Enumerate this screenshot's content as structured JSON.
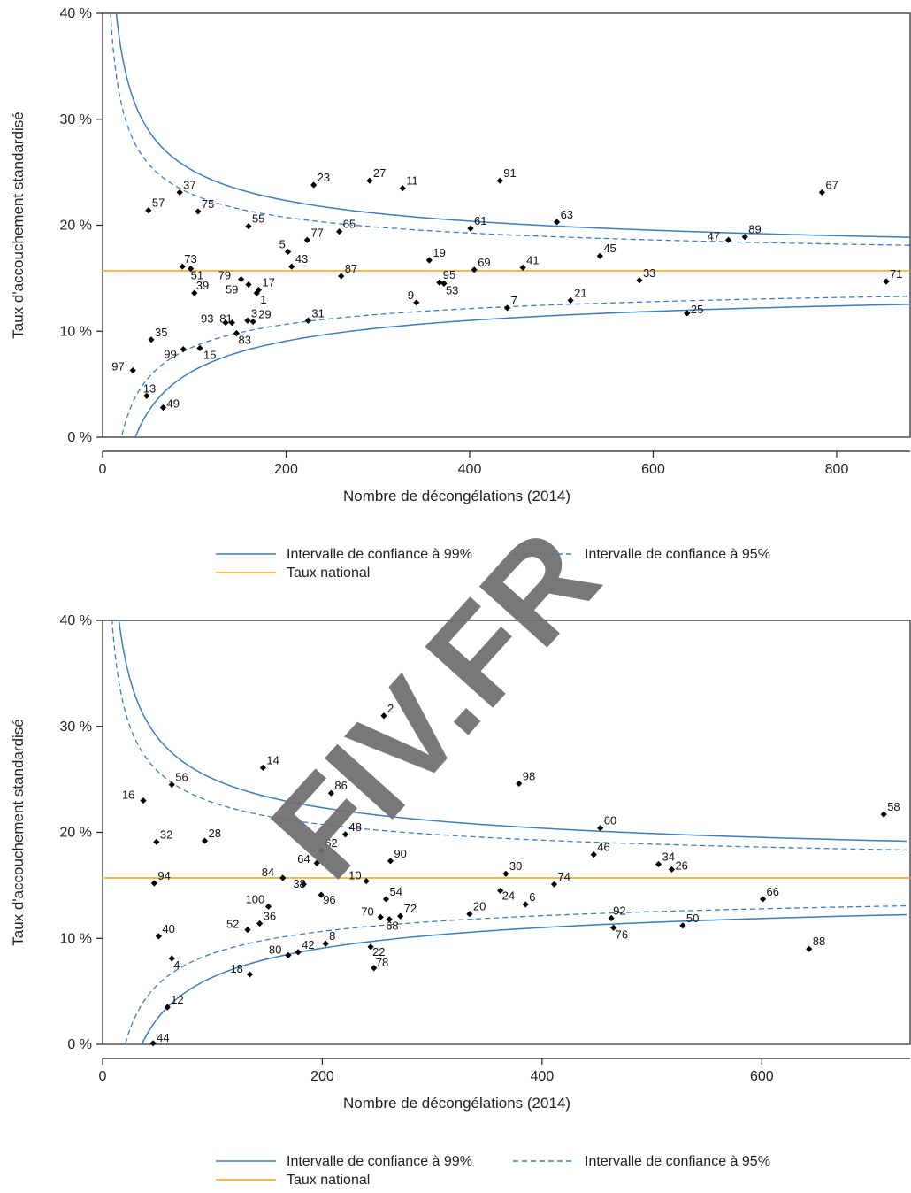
{
  "watermark": "FIV.FR",
  "colors": {
    "ci": "#3c7dc4",
    "national": "#f2b134",
    "point": "#000000",
    "axis": "#222222"
  },
  "legend": {
    "ci99": "Intervalle de confiance à 99%",
    "ci95": "Intervalle de confiance à 95%",
    "national": "Taux national"
  },
  "chart_data": [
    {
      "type": "scatter",
      "xlabel": "Nombre de décongélations (2014)",
      "ylabel": "Taux d'accouchement standardisé",
      "xlim": [
        0,
        880
      ],
      "ylim": [
        0,
        40
      ],
      "xticks": [
        0,
        200,
        400,
        600,
        800
      ],
      "yticks": [
        0,
        10,
        20,
        30,
        40
      ],
      "ytick_labels": [
        "0 %",
        "10 %",
        "20 %",
        "30 %",
        "40 %"
      ],
      "national_rate": 15.7,
      "grid": false,
      "points": [
        {
          "label": "57",
          "x": 50,
          "y": 21.4
        },
        {
          "label": "37",
          "x": 84,
          "y": 23.1
        },
        {
          "label": "75",
          "x": 104,
          "y": 21.3
        },
        {
          "label": "55",
          "x": 159,
          "y": 19.9
        },
        {
          "label": "23",
          "x": 230,
          "y": 23.8
        },
        {
          "label": "27",
          "x": 291,
          "y": 24.2
        },
        {
          "label": "11",
          "x": 327,
          "y": 23.5
        },
        {
          "label": "91",
          "x": 433,
          "y": 24.2
        },
        {
          "label": "67",
          "x": 784,
          "y": 23.1
        },
        {
          "label": "65",
          "x": 258,
          "y": 19.4
        },
        {
          "label": "77",
          "x": 223,
          "y": 18.6
        },
        {
          "label": "5",
          "x": 202,
          "y": 17.5
        },
        {
          "label": "43",
          "x": 206,
          "y": 16.1
        },
        {
          "label": "61",
          "x": 401,
          "y": 19.7
        },
        {
          "label": "63",
          "x": 495,
          "y": 20.3
        },
        {
          "label": "47",
          "x": 682,
          "y": 18.6
        },
        {
          "label": "89",
          "x": 700,
          "y": 18.9
        },
        {
          "label": "45",
          "x": 542,
          "y": 17.1
        },
        {
          "label": "19",
          "x": 356,
          "y": 16.7
        },
        {
          "label": "87",
          "x": 260,
          "y": 15.2
        },
        {
          "label": "69",
          "x": 405,
          "y": 15.8
        },
        {
          "label": "41",
          "x": 458,
          "y": 16.0
        },
        {
          "label": "73",
          "x": 87,
          "y": 16.1
        },
        {
          "label": "51",
          "x": 96,
          "y": 15.9
        },
        {
          "label": "79",
          "x": 151,
          "y": 14.9
        },
        {
          "label": "17",
          "x": 170,
          "y": 13.9
        },
        {
          "label": "59",
          "x": 159,
          "y": 14.4
        },
        {
          "label": "1",
          "x": 168,
          "y": 13.6
        },
        {
          "label": "39",
          "x": 100,
          "y": 13.6
        },
        {
          "label": "95",
          "x": 367,
          "y": 14.6
        },
        {
          "label": "53",
          "x": 372,
          "y": 14.5
        },
        {
          "label": "33",
          "x": 585,
          "y": 14.8
        },
        {
          "label": "71",
          "x": 854,
          "y": 14.7
        },
        {
          "label": "9",
          "x": 342,
          "y": 12.7
        },
        {
          "label": "7",
          "x": 441,
          "y": 12.2
        },
        {
          "label": "21",
          "x": 510,
          "y": 12.9
        },
        {
          "label": "25",
          "x": 637,
          "y": 11.7
        },
        {
          "label": "93",
          "x": 134,
          "y": 10.8
        },
        {
          "label": "81",
          "x": 141,
          "y": 10.8
        },
        {
          "label": "3",
          "x": 158,
          "y": 11.0
        },
        {
          "label": "29",
          "x": 164,
          "y": 10.9
        },
        {
          "label": "31",
          "x": 224,
          "y": 11.0
        },
        {
          "label": "83",
          "x": 146,
          "y": 9.8
        },
        {
          "label": "35",
          "x": 53,
          "y": 9.2
        },
        {
          "label": "99",
          "x": 88,
          "y": 8.3
        },
        {
          "label": "15",
          "x": 106,
          "y": 8.4
        },
        {
          "label": "97",
          "x": 33,
          "y": 6.3
        },
        {
          "label": "13",
          "x": 48,
          "y": 3.9
        },
        {
          "label": "49",
          "x": 66,
          "y": 2.8
        }
      ]
    },
    {
      "type": "scatter",
      "xlabel": "Nombre de décongélations (2014)",
      "ylabel": "Taux d'accouchement standardisé",
      "xlim": [
        0,
        735
      ],
      "ylim": [
        0,
        40
      ],
      "xticks": [
        0,
        200,
        400,
        600
      ],
      "yticks": [
        0,
        10,
        20,
        30,
        40
      ],
      "ytick_labels": [
        "0 %",
        "10 %",
        "20 %",
        "30 %",
        "40 %"
      ],
      "national_rate": 15.7,
      "grid": false,
      "points": [
        {
          "label": "2",
          "x": 256,
          "y": 31.0
        },
        {
          "label": "14",
          "x": 146,
          "y": 26.1
        },
        {
          "label": "98",
          "x": 379,
          "y": 24.6
        },
        {
          "label": "86",
          "x": 208,
          "y": 23.7
        },
        {
          "label": "56",
          "x": 63,
          "y": 24.5
        },
        {
          "label": "16",
          "x": 37,
          "y": 23.0
        },
        {
          "label": "58",
          "x": 711,
          "y": 21.7
        },
        {
          "label": "60",
          "x": 453,
          "y": 20.4
        },
        {
          "label": "32",
          "x": 49,
          "y": 19.1
        },
        {
          "label": "28",
          "x": 93,
          "y": 19.2
        },
        {
          "label": "48",
          "x": 221,
          "y": 19.8
        },
        {
          "label": "62",
          "x": 199,
          "y": 18.3
        },
        {
          "label": "64",
          "x": 195,
          "y": 17.1
        },
        {
          "label": "90",
          "x": 262,
          "y": 17.3
        },
        {
          "label": "46",
          "x": 447,
          "y": 17.9
        },
        {
          "label": "34",
          "x": 506,
          "y": 17.0
        },
        {
          "label": "26",
          "x": 518,
          "y": 16.5
        },
        {
          "label": "84",
          "x": 164,
          "y": 15.7
        },
        {
          "label": "38",
          "x": 183,
          "y": 15.1
        },
        {
          "label": "10",
          "x": 240,
          "y": 15.4
        },
        {
          "label": "30",
          "x": 367,
          "y": 16.1
        },
        {
          "label": "74",
          "x": 411,
          "y": 15.1
        },
        {
          "label": "94",
          "x": 47,
          "y": 15.2
        },
        {
          "label": "96",
          "x": 199,
          "y": 14.1
        },
        {
          "label": "54",
          "x": 258,
          "y": 13.7
        },
        {
          "label": "24",
          "x": 362,
          "y": 14.5
        },
        {
          "label": "6",
          "x": 385,
          "y": 13.2
        },
        {
          "label": "66",
          "x": 601,
          "y": 13.7
        },
        {
          "label": "100",
          "x": 151,
          "y": 13.0
        },
        {
          "label": "52",
          "x": 132,
          "y": 10.8
        },
        {
          "label": "36",
          "x": 143,
          "y": 11.4
        },
        {
          "label": "70",
          "x": 253,
          "y": 12.0
        },
        {
          "label": "68",
          "x": 261,
          "y": 11.8
        },
        {
          "label": "72",
          "x": 271,
          "y": 12.1
        },
        {
          "label": "20",
          "x": 334,
          "y": 12.3
        },
        {
          "label": "92",
          "x": 463,
          "y": 11.9
        },
        {
          "label": "76",
          "x": 465,
          "y": 11.0
        },
        {
          "label": "50",
          "x": 528,
          "y": 11.2
        },
        {
          "label": "40",
          "x": 51,
          "y": 10.2
        },
        {
          "label": "80",
          "x": 169,
          "y": 8.4
        },
        {
          "label": "42",
          "x": 178,
          "y": 8.7
        },
        {
          "label": "8",
          "x": 203,
          "y": 9.5
        },
        {
          "label": "22",
          "x": 244,
          "y": 9.2
        },
        {
          "label": "88",
          "x": 643,
          "y": 9.0
        },
        {
          "label": "4",
          "x": 63,
          "y": 8.1
        },
        {
          "label": "78",
          "x": 247,
          "y": 7.2
        },
        {
          "label": "18",
          "x": 134,
          "y": 6.6
        },
        {
          "label": "12",
          "x": 59,
          "y": 3.5
        },
        {
          "label": "44",
          "x": 46,
          "y": 0.1
        }
      ]
    }
  ]
}
